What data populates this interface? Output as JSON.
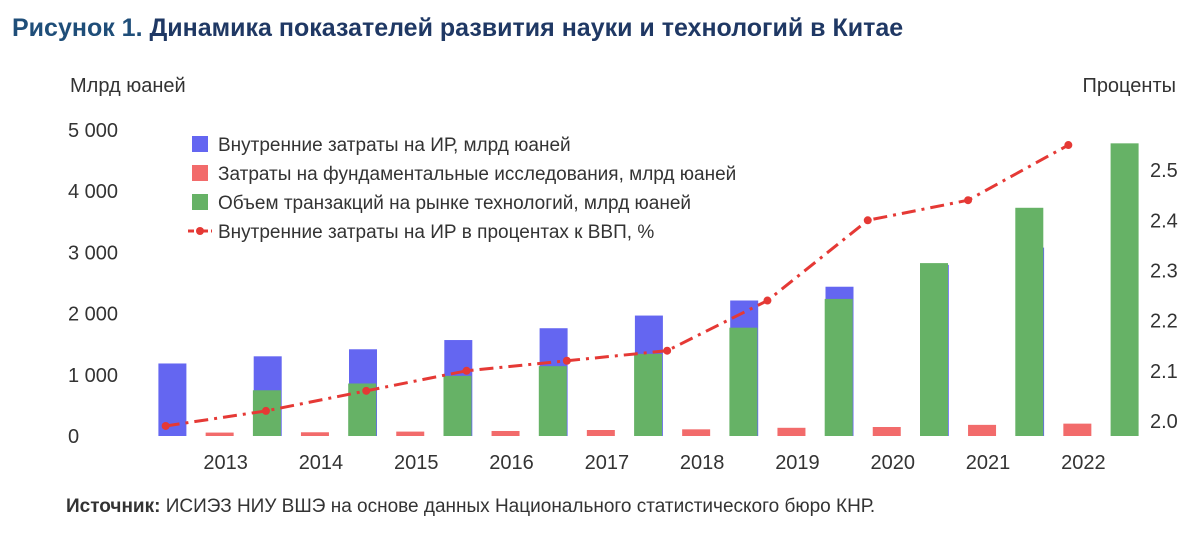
{
  "header": {
    "label": "Рисунок 1.",
    "title": "Динамика показателей развития науки и технологий в Китае"
  },
  "source": {
    "label": "Источник:",
    "text": "ИСИЭЗ НИУ ВШЭ на основе данных Национального статистического бюро КНР."
  },
  "chart_data": {
    "type": "bar",
    "categories": [
      "2013",
      "2014",
      "2015",
      "2016",
      "2017",
      "2018",
      "2019",
      "2020",
      "2021",
      "2022"
    ],
    "left_axis": {
      "label": "Млрд юаней",
      "range": [
        0,
        5000
      ],
      "ticks": [
        0,
        1000,
        2000,
        3000,
        4000,
        5000
      ],
      "tick_labels": [
        "0",
        "1 000",
        "2 000",
        "3 000",
        "4 000",
        "5 000"
      ]
    },
    "right_axis": {
      "label": "Проценты",
      "range": [
        1.97,
        2.58
      ],
      "ticks": [
        2.0,
        2.1,
        2.2,
        2.3,
        2.4,
        2.5
      ],
      "tick_labels": [
        "2.0",
        "2.1",
        "2.2",
        "2.3",
        "2.4",
        "2.5"
      ]
    },
    "grid": false,
    "legend_position": "top-left",
    "series": [
      {
        "name": "Внутренние затраты на ИР, млрд юаней",
        "type": "bar",
        "axis": "left",
        "color": "#6466f1",
        "values": [
          1185,
          1302,
          1417,
          1568,
          1761,
          1968,
          2214,
          2439,
          2796,
          3078
        ]
      },
      {
        "name": "Затраты на фундаментальные исследования, млрд юаней",
        "type": "bar",
        "axis": "left",
        "color": "#f26b6b",
        "values": [
          56,
          61,
          72,
          82,
          98,
          109,
          134,
          147,
          182,
          202
        ]
      },
      {
        "name": "Объем транзакций на рынке технологий, млрд юаней",
        "type": "bar",
        "axis": "left",
        "color": "#66b266",
        "values": [
          747,
          858,
          983,
          1141,
          1342,
          1770,
          2240,
          2825,
          3729,
          4782
        ]
      },
      {
        "name": "Внутренние затраты на ИР в процентах к ВВП, %",
        "type": "line",
        "axis": "right",
        "color": "#e53935",
        "values": [
          1.99,
          2.02,
          2.06,
          2.1,
          2.12,
          2.14,
          2.24,
          2.4,
          2.44,
          2.55
        ]
      }
    ]
  }
}
